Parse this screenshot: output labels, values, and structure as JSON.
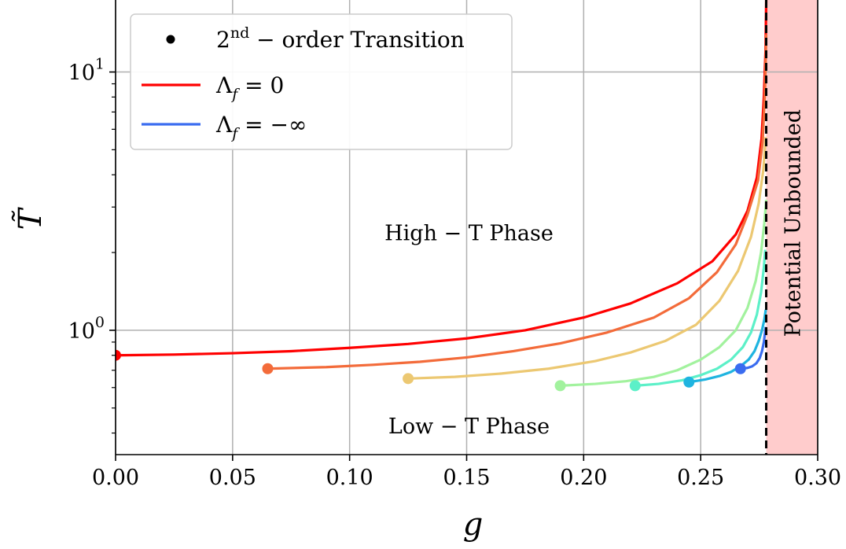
{
  "chart_data": {
    "type": "line",
    "xlabel": "g",
    "ylabel": "T̃",
    "xlim": [
      0.0,
      0.3
    ],
    "ylim": [
      0.33,
      19.0
    ],
    "yscale": "log",
    "grid": true,
    "x_ticks": [
      0.0,
      0.05,
      0.1,
      0.15,
      0.2,
      0.25,
      0.3
    ],
    "x_tick_labels": [
      "0.00",
      "0.05",
      "0.10",
      "0.15",
      "0.20",
      "0.25",
      "0.30"
    ],
    "y_major_ticks": [
      1,
      10
    ],
    "y_tick_labels": [
      {
        "base": "10",
        "exp": "0"
      },
      {
        "base": "10",
        "exp": "1"
      }
    ],
    "legend": {
      "placement": "top-left",
      "entries": [
        {
          "marker": "dot",
          "color": "#000000",
          "label": "2nd − order Transition",
          "label_main": "2",
          "label_sup": "nd",
          "label_rest": " − order Transition"
        },
        {
          "marker": "line",
          "color": "#ff0000",
          "label": "Λf = 0",
          "label_main": "Λ",
          "label_sub": "f",
          "label_rest": " =  0"
        },
        {
          "marker": "line",
          "color": "#3a6cf0",
          "label": "Λf = −∞",
          "label_main": "Λ",
          "label_sub": "f",
          "label_rest": " =  −∞"
        }
      ]
    },
    "annotations": [
      {
        "text": "High − T Phase",
        "x": 0.151,
        "y": 2.35
      },
      {
        "text": "Low − T Phase",
        "x": 0.151,
        "y": 0.42
      },
      {
        "text": "Potential Unbounded",
        "x": 0.29,
        "y": 2.6,
        "rotation": -90
      }
    ],
    "critical_line": {
      "x": 0.278,
      "style": "dashed",
      "color": "#000000"
    },
    "unbounded_region": {
      "x_from": 0.278,
      "x_to": 0.3,
      "color": "#ffcccc"
    },
    "series": [
      {
        "color": "#ff0000",
        "start": [
          0.0,
          0.8
        ],
        "points": [
          [
            0.0,
            0.8
          ],
          [
            0.025,
            0.805
          ],
          [
            0.05,
            0.815
          ],
          [
            0.075,
            0.83
          ],
          [
            0.1,
            0.855
          ],
          [
            0.125,
            0.885
          ],
          [
            0.15,
            0.93
          ],
          [
            0.175,
            1.0
          ],
          [
            0.2,
            1.12
          ],
          [
            0.22,
            1.27
          ],
          [
            0.24,
            1.52
          ],
          [
            0.255,
            1.85
          ],
          [
            0.265,
            2.35
          ],
          [
            0.27,
            2.9
          ],
          [
            0.274,
            3.9
          ],
          [
            0.276,
            5.5
          ],
          [
            0.277,
            8.0
          ],
          [
            0.2777,
            12.0
          ],
          [
            0.278,
            19.0
          ]
        ]
      },
      {
        "color": "#f36b3a",
        "start": [
          0.065,
          0.71
        ],
        "points": [
          [
            0.065,
            0.71
          ],
          [
            0.09,
            0.72
          ],
          [
            0.11,
            0.735
          ],
          [
            0.13,
            0.755
          ],
          [
            0.15,
            0.785
          ],
          [
            0.17,
            0.83
          ],
          [
            0.19,
            0.89
          ],
          [
            0.21,
            0.98
          ],
          [
            0.23,
            1.12
          ],
          [
            0.245,
            1.33
          ],
          [
            0.257,
            1.68
          ],
          [
            0.265,
            2.15
          ],
          [
            0.27,
            2.8
          ],
          [
            0.2745,
            3.8
          ],
          [
            0.2765,
            5.4
          ],
          [
            0.2775,
            8.5
          ],
          [
            0.278,
            14.0
          ]
        ]
      },
      {
        "color": "#ecc872",
        "start": [
          0.125,
          0.65
        ],
        "points": [
          [
            0.125,
            0.65
          ],
          [
            0.145,
            0.66
          ],
          [
            0.165,
            0.68
          ],
          [
            0.185,
            0.71
          ],
          [
            0.205,
            0.76
          ],
          [
            0.22,
            0.82
          ],
          [
            0.235,
            0.91
          ],
          [
            0.248,
            1.05
          ],
          [
            0.258,
            1.3
          ],
          [
            0.266,
            1.7
          ],
          [
            0.2715,
            2.3
          ],
          [
            0.2748,
            3.1
          ],
          [
            0.2768,
            4.2
          ],
          [
            0.2778,
            5.6
          ]
        ]
      },
      {
        "color": "#a2f29e",
        "start": [
          0.19,
          0.61
        ],
        "points": [
          [
            0.19,
            0.61
          ],
          [
            0.205,
            0.62
          ],
          [
            0.218,
            0.635
          ],
          [
            0.23,
            0.66
          ],
          [
            0.24,
            0.7
          ],
          [
            0.25,
            0.77
          ],
          [
            0.258,
            0.86
          ],
          [
            0.265,
            1.0
          ],
          [
            0.27,
            1.22
          ],
          [
            0.2735,
            1.55
          ],
          [
            0.2758,
            2.0
          ],
          [
            0.2772,
            2.6
          ],
          [
            0.278,
            3.2
          ]
        ]
      },
      {
        "color": "#5cf0c8",
        "start": [
          0.222,
          0.61
        ],
        "points": [
          [
            0.222,
            0.61
          ],
          [
            0.232,
            0.62
          ],
          [
            0.242,
            0.64
          ],
          [
            0.25,
            0.67
          ],
          [
            0.257,
            0.71
          ],
          [
            0.263,
            0.77
          ],
          [
            0.268,
            0.86
          ],
          [
            0.2715,
            0.98
          ],
          [
            0.274,
            1.15
          ],
          [
            0.2758,
            1.4
          ],
          [
            0.277,
            1.75
          ],
          [
            0.2776,
            2.05
          ]
        ]
      },
      {
        "color": "#1fb4e0",
        "start": [
          0.245,
          0.63
        ],
        "points": [
          [
            0.245,
            0.63
          ],
          [
            0.252,
            0.645
          ],
          [
            0.258,
            0.665
          ],
          [
            0.263,
            0.69
          ],
          [
            0.267,
            0.725
          ],
          [
            0.2705,
            0.77
          ],
          [
            0.273,
            0.83
          ],
          [
            0.2748,
            0.91
          ],
          [
            0.2762,
            1.0
          ],
          [
            0.2772,
            1.1
          ],
          [
            0.2778,
            1.2
          ]
        ]
      },
      {
        "color": "#3a6cf0",
        "start": [
          0.267,
          0.71
        ],
        "points": [
          [
            0.267,
            0.71
          ],
          [
            0.27,
            0.715
          ],
          [
            0.272,
            0.725
          ],
          [
            0.2738,
            0.745
          ],
          [
            0.2752,
            0.78
          ],
          [
            0.2762,
            0.83
          ],
          [
            0.277,
            0.9
          ],
          [
            0.2775,
            0.98
          ],
          [
            0.2778,
            1.03
          ]
        ]
      }
    ]
  }
}
